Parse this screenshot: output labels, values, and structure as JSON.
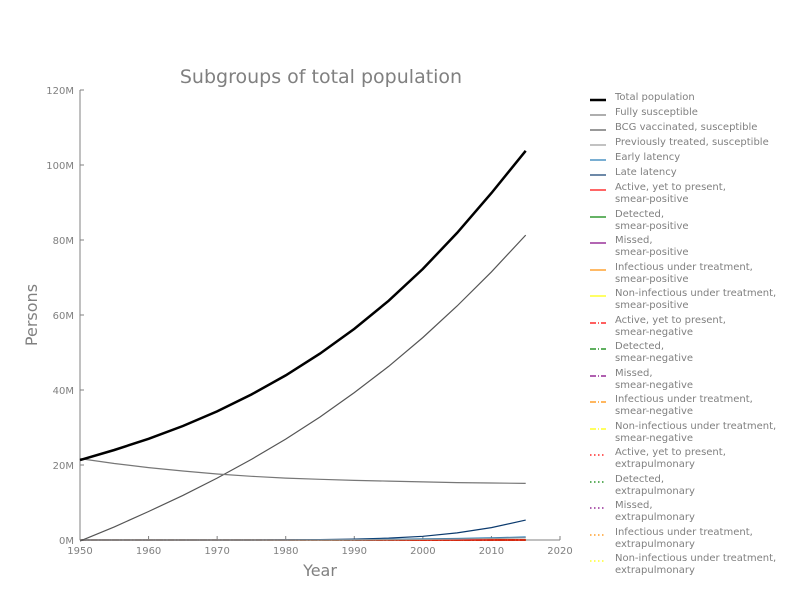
{
  "chart_data": {
    "type": "line",
    "title": "Subgroups of total population",
    "xlabel": "Year",
    "ylabel": "Persons",
    "xlim": [
      1950,
      2020
    ],
    "ylim": [
      0,
      120000000
    ],
    "xticks": [
      1950,
      1960,
      1970,
      1980,
      1990,
      2000,
      2010,
      2020
    ],
    "yticks": [
      0,
      20000000,
      40000000,
      60000000,
      80000000,
      100000000,
      120000000
    ],
    "ytick_labels": [
      "0M",
      "20M",
      "40M",
      "60M",
      "80M",
      "100M",
      "120M"
    ],
    "grid": false,
    "legend_position": "right, outside plot",
    "x": [
      1950,
      1955,
      1960,
      1965,
      1970,
      1975,
      1980,
      1985,
      1990,
      1995,
      2000,
      2005,
      2010,
      2015
    ],
    "series": [
      {
        "name": "Total population",
        "color": "#000000",
        "dash": "solid",
        "bold": true,
        "values": [
          21300000,
          24000000,
          27000000,
          30400000,
          34300000,
          38800000,
          43900000,
          49700000,
          56300000,
          63800000,
          72300000,
          81900000,
          92500000,
          103800000
        ]
      },
      {
        "name": "Fully susceptible",
        "color": "#777777",
        "dash": "solid",
        "values": [
          21700000,
          20400000,
          19300000,
          18400000,
          17600000,
          17000000,
          16500000,
          16200000,
          15900000,
          15700000,
          15500000,
          15300000,
          15200000,
          15100000
        ]
      },
      {
        "name": "BCG vaccinated, susceptible",
        "color": "#555555",
        "dash": "solid",
        "values": [
          -300000,
          3500000,
          7600000,
          11900000,
          16500000,
          21500000,
          26900000,
          32800000,
          39300000,
          46300000,
          54000000,
          62400000,
          71500000,
          81300000
        ]
      },
      {
        "name": "Previously treated, susceptible",
        "color": "#999999",
        "dash": "solid",
        "values": [
          0,
          0,
          0,
          0,
          0,
          0,
          0,
          0,
          50000,
          100000,
          150000,
          250000,
          400000,
          600000
        ]
      },
      {
        "name": "Early latency",
        "color": "#1f77b4",
        "dash": "solid",
        "values": [
          0,
          0,
          0,
          0,
          0,
          0,
          0,
          50000,
          100000,
          200000,
          300000,
          400000,
          600000,
          800000
        ]
      },
      {
        "name": "Late latency",
        "color": "#0b3a6e",
        "dash": "solid",
        "values": [
          0,
          0,
          0,
          0,
          0,
          0,
          50000,
          100000,
          250000,
          500000,
          1000000,
          1900000,
          3300000,
          5300000
        ]
      },
      {
        "name": "Active, yet to present,\nsmear-positive",
        "color": "#ff0000",
        "dash": "solid",
        "values": [
          0,
          0,
          0,
          0,
          0,
          0,
          0,
          0,
          0,
          0,
          0,
          0,
          0,
          0
        ]
      },
      {
        "name": "Detected,\nsmear-positive",
        "color": "#008000",
        "dash": "solid",
        "values": [
          0,
          0,
          0,
          0,
          0,
          0,
          0,
          0,
          0,
          0,
          0,
          0,
          0,
          0
        ]
      },
      {
        "name": "Missed,\nsmear-positive",
        "color": "#800080",
        "dash": "solid",
        "values": [
          0,
          0,
          0,
          0,
          0,
          0,
          0,
          0,
          0,
          0,
          0,
          0,
          0,
          0
        ]
      },
      {
        "name": "Infectious under treatment,\nsmear-positive",
        "color": "#ff8c00",
        "dash": "solid",
        "values": [
          0,
          0,
          0,
          0,
          0,
          0,
          0,
          0,
          0,
          0,
          0,
          0,
          0,
          0
        ]
      },
      {
        "name": "Non-infectious under treatment,\nsmear-positive",
        "color": "#ffff00",
        "dash": "solid",
        "values": [
          0,
          0,
          0,
          0,
          0,
          0,
          0,
          0,
          0,
          0,
          0,
          0,
          0,
          0
        ]
      },
      {
        "name": "Active, yet to present,\nsmear-negative",
        "color": "#ff0000",
        "dash": "dashdot",
        "values": [
          0,
          0,
          0,
          0,
          0,
          0,
          0,
          0,
          0,
          0,
          0,
          0,
          0,
          0
        ]
      },
      {
        "name": "Detected,\nsmear-negative",
        "color": "#008000",
        "dash": "dashdot",
        "values": [
          0,
          0,
          0,
          0,
          0,
          0,
          0,
          0,
          0,
          0,
          0,
          0,
          0,
          0
        ]
      },
      {
        "name": "Missed,\nsmear-negative",
        "color": "#800080",
        "dash": "dashdot",
        "values": [
          0,
          0,
          0,
          0,
          0,
          0,
          0,
          0,
          0,
          0,
          0,
          0,
          0,
          0
        ]
      },
      {
        "name": "Infectious under treatment,\nsmear-negative",
        "color": "#ff8c00",
        "dash": "dashdot",
        "values": [
          0,
          0,
          0,
          0,
          0,
          0,
          0,
          0,
          0,
          0,
          0,
          0,
          0,
          0
        ]
      },
      {
        "name": "Non-infectious under treatment,\nsmear-negative",
        "color": "#ffff00",
        "dash": "dashdot",
        "values": [
          0,
          0,
          0,
          0,
          0,
          0,
          0,
          0,
          0,
          0,
          0,
          0,
          0,
          0
        ]
      },
      {
        "name": "Active, yet to present,\nextrapulmonary",
        "color": "#ff0000",
        "dash": "dotted",
        "values": [
          0,
          0,
          0,
          0,
          0,
          0,
          0,
          0,
          0,
          0,
          0,
          0,
          0,
          0
        ]
      },
      {
        "name": "Detected,\nextrapulmonary",
        "color": "#008000",
        "dash": "dotted",
        "values": [
          0,
          0,
          0,
          0,
          0,
          0,
          0,
          0,
          0,
          0,
          0,
          0,
          0,
          0
        ]
      },
      {
        "name": "Missed,\nextrapulmonary",
        "color": "#800080",
        "dash": "dotted",
        "values": [
          0,
          0,
          0,
          0,
          0,
          0,
          0,
          0,
          0,
          0,
          0,
          0,
          0,
          0
        ]
      },
      {
        "name": "Infectious under treatment,\nextrapulmonary",
        "color": "#ff8c00",
        "dash": "dotted",
        "values": [
          0,
          0,
          0,
          0,
          0,
          0,
          0,
          0,
          0,
          0,
          0,
          0,
          0,
          0
        ]
      },
      {
        "name": "Non-infectious under treatment,\nextrapulmonary",
        "color": "#ffff00",
        "dash": "dotted",
        "values": [
          0,
          0,
          0,
          0,
          0,
          0,
          0,
          0,
          0,
          0,
          0,
          0,
          0,
          0
        ]
      }
    ]
  }
}
